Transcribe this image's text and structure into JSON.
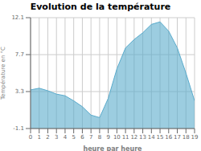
{
  "chart_data": {
    "type": "area",
    "title": "Evolution de la température",
    "xlabel": "heure par heure",
    "ylabel": "Température en °C",
    "x": [
      0,
      1,
      2,
      3,
      4,
      5,
      6,
      7,
      8,
      9,
      10,
      11,
      12,
      13,
      14,
      15,
      16,
      17,
      18,
      19
    ],
    "values": [
      3.5,
      3.7,
      3.4,
      3.0,
      2.8,
      2.2,
      1.5,
      0.5,
      0.2,
      2.5,
      6.0,
      8.5,
      9.5,
      10.3,
      11.3,
      11.6,
      10.5,
      8.5,
      5.5,
      2.2
    ],
    "color": "#5aabcc",
    "xlim": [
      0,
      19
    ],
    "ylim": [
      -1.1,
      12.1
    ],
    "xticks": [
      0,
      1,
      2,
      3,
      4,
      5,
      6,
      7,
      8,
      9,
      10,
      11,
      12,
      13,
      14,
      15,
      16,
      17,
      18,
      19
    ],
    "yticks": [
      -1.1,
      3.3,
      7.7,
      12.1
    ],
    "grid": true
  }
}
